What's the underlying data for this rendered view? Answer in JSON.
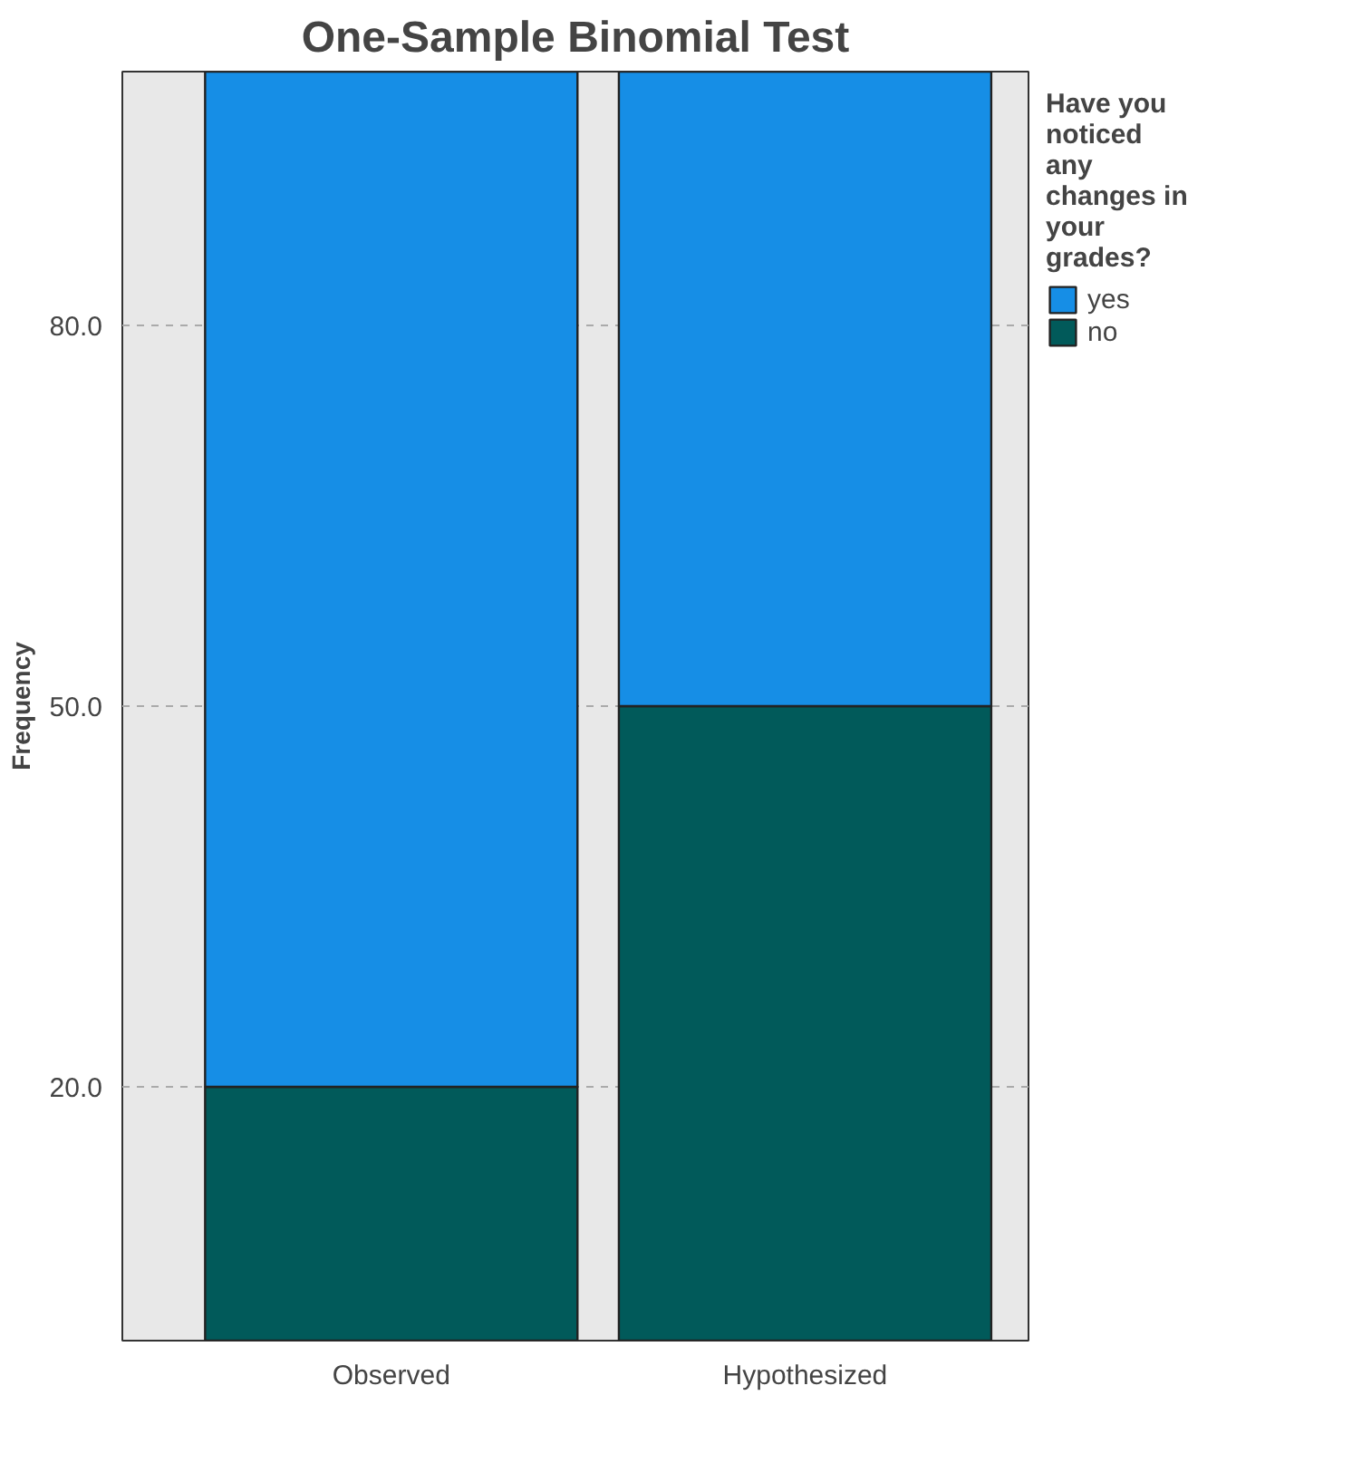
{
  "chart_data": {
    "type": "bar",
    "title": "One-Sample Binomial Test",
    "ylabel": "Frequency",
    "legend_title": "Have you noticed any changes in your grades?",
    "categories": [
      "Observed",
      "Hypothesized"
    ],
    "stacked": true,
    "series": [
      {
        "name": "no",
        "color": "#015a5a",
        "values": [
          20,
          50
        ]
      },
      {
        "name": "yes",
        "color": "#168ee6",
        "values": [
          80,
          50
        ]
      }
    ],
    "ylim": [
      0,
      100
    ],
    "yticks": [
      {
        "value": 20,
        "label": "20.0"
      },
      {
        "value": 50,
        "label": "50.0"
      },
      {
        "value": 80,
        "label": "80.0"
      }
    ],
    "grid": "y",
    "legend": "top right"
  }
}
